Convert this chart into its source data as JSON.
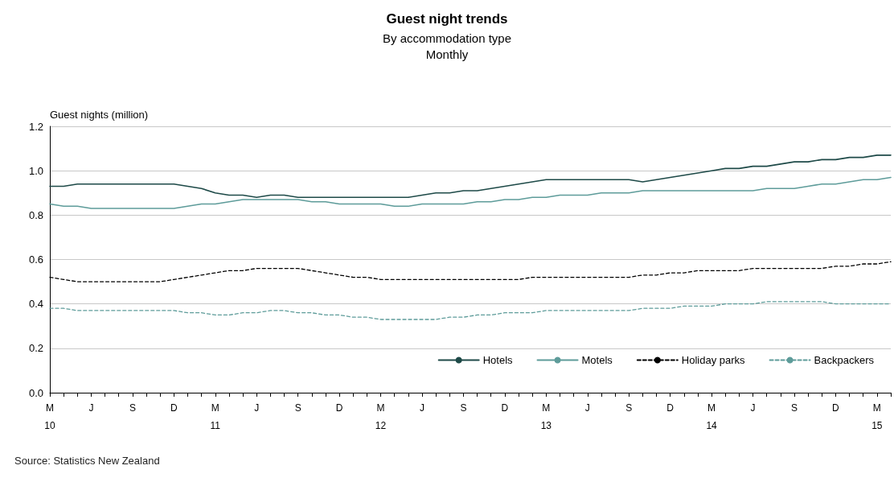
{
  "chart_data": {
    "type": "line",
    "title": "Guest night trends",
    "subtitle": "By accommodation type\nMonthly",
    "ylabel": "Guest nights (million)",
    "categories": [
      "M\n10",
      null,
      null,
      "J",
      null,
      null,
      "S",
      null,
      null,
      "D",
      null,
      null,
      "M\n11",
      null,
      null,
      "J",
      null,
      null,
      "S",
      null,
      null,
      "D",
      null,
      null,
      "M\n12",
      null,
      null,
      "J",
      null,
      null,
      "S",
      null,
      null,
      "D",
      null,
      null,
      "M\n13",
      null,
      null,
      "J",
      null,
      null,
      "S",
      null,
      null,
      "D",
      null,
      null,
      "M\n14",
      null,
      null,
      "J",
      null,
      null,
      "S",
      null,
      null,
      "D",
      null,
      null,
      "M\n15",
      null
    ],
    "series": [
      {
        "name": "Hotels",
        "color": "#1e4a48",
        "line_style": "solid",
        "values": [
          0.93,
          0.93,
          0.94,
          0.94,
          0.94,
          0.94,
          0.94,
          0.94,
          0.94,
          0.94,
          0.93,
          0.92,
          0.9,
          0.89,
          0.89,
          0.88,
          0.89,
          0.89,
          0.88,
          0.88,
          0.88,
          0.88,
          0.88,
          0.88,
          0.88,
          0.88,
          0.88,
          0.89,
          0.9,
          0.9,
          0.91,
          0.91,
          0.92,
          0.93,
          0.94,
          0.95,
          0.96,
          0.96,
          0.96,
          0.96,
          0.96,
          0.96,
          0.96,
          0.95,
          0.96,
          0.97,
          0.98,
          0.99,
          1.0,
          1.01,
          1.01,
          1.02,
          1.02,
          1.03,
          1.04,
          1.04,
          1.05,
          1.05,
          1.06,
          1.06,
          1.07,
          1.07
        ]
      },
      {
        "name": "Motels",
        "color": "#5e9c9a",
        "line_style": "solid",
        "values": [
          0.85,
          0.84,
          0.84,
          0.83,
          0.83,
          0.83,
          0.83,
          0.83,
          0.83,
          0.83,
          0.84,
          0.85,
          0.85,
          0.86,
          0.87,
          0.87,
          0.87,
          0.87,
          0.87,
          0.86,
          0.86,
          0.85,
          0.85,
          0.85,
          0.85,
          0.84,
          0.84,
          0.85,
          0.85,
          0.85,
          0.85,
          0.86,
          0.86,
          0.87,
          0.87,
          0.88,
          0.88,
          0.89,
          0.89,
          0.89,
          0.9,
          0.9,
          0.9,
          0.91,
          0.91,
          0.91,
          0.91,
          0.91,
          0.91,
          0.91,
          0.91,
          0.91,
          0.92,
          0.92,
          0.92,
          0.93,
          0.94,
          0.94,
          0.95,
          0.96,
          0.96,
          0.97
        ]
      },
      {
        "name": "Holiday parks",
        "color": "#000000",
        "line_style": "dashed",
        "values": [
          0.52,
          0.51,
          0.5,
          0.5,
          0.5,
          0.5,
          0.5,
          0.5,
          0.5,
          0.51,
          0.52,
          0.53,
          0.54,
          0.55,
          0.55,
          0.56,
          0.56,
          0.56,
          0.56,
          0.55,
          0.54,
          0.53,
          0.52,
          0.52,
          0.51,
          0.51,
          0.51,
          0.51,
          0.51,
          0.51,
          0.51,
          0.51,
          0.51,
          0.51,
          0.51,
          0.52,
          0.52,
          0.52,
          0.52,
          0.52,
          0.52,
          0.52,
          0.52,
          0.53,
          0.53,
          0.54,
          0.54,
          0.55,
          0.55,
          0.55,
          0.55,
          0.56,
          0.56,
          0.56,
          0.56,
          0.56,
          0.56,
          0.57,
          0.57,
          0.58,
          0.58,
          0.59
        ]
      },
      {
        "name": "Backpackers",
        "color": "#5e9c9a",
        "line_style": "dashed",
        "values": [
          0.38,
          0.38,
          0.37,
          0.37,
          0.37,
          0.37,
          0.37,
          0.37,
          0.37,
          0.37,
          0.36,
          0.36,
          0.35,
          0.35,
          0.36,
          0.36,
          0.37,
          0.37,
          0.36,
          0.36,
          0.35,
          0.35,
          0.34,
          0.34,
          0.33,
          0.33,
          0.33,
          0.33,
          0.33,
          0.34,
          0.34,
          0.35,
          0.35,
          0.36,
          0.36,
          0.36,
          0.37,
          0.37,
          0.37,
          0.37,
          0.37,
          0.37,
          0.37,
          0.38,
          0.38,
          0.38,
          0.39,
          0.39,
          0.39,
          0.4,
          0.4,
          0.4,
          0.41,
          0.41,
          0.41,
          0.41,
          0.41,
          0.4,
          0.4,
          0.4,
          0.4,
          0.4
        ]
      }
    ],
    "ylim": [
      0,
      1.2
    ],
    "yticks": [
      {
        "value": 0,
        "label": "0.0"
      },
      0.2,
      0.4,
      0.6,
      0.8,
      {
        "value": 1,
        "label": "1.0"
      },
      1.2
    ],
    "grid": "y",
    "legend": "bottom right",
    "marker": "none",
    "annotations": [
      "Source: Statistics New Zealand"
    ]
  }
}
